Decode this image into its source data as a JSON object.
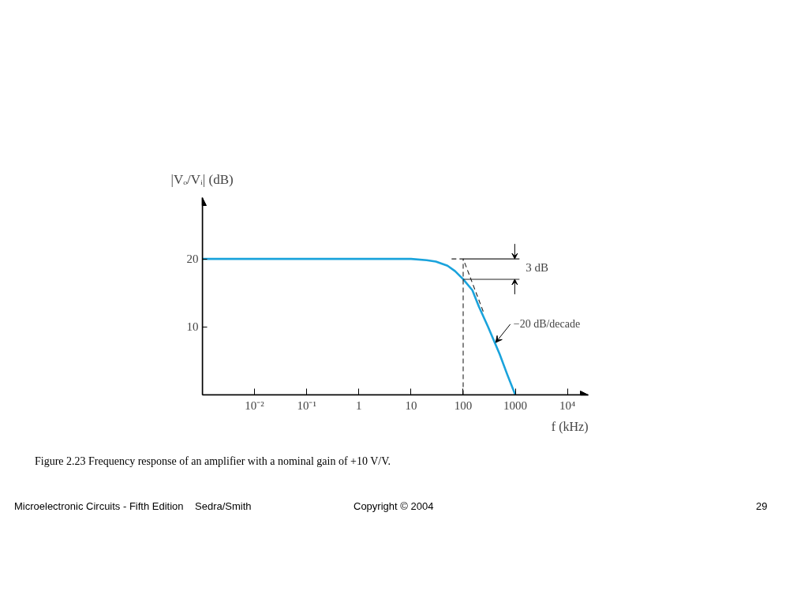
{
  "chart_data": {
    "type": "line",
    "ylabel": "|Vₒ/Vᵢ| (dB)",
    "xlabel": "f (kHz)",
    "log": "x",
    "xlim": [
      0.001,
      25000
    ],
    "ylim": [
      0,
      29
    ],
    "xticks": [
      {
        "value": 0.01,
        "label": "10⁻²"
      },
      {
        "value": 0.1,
        "label": "10⁻¹"
      },
      {
        "value": 1,
        "label": "1"
      },
      {
        "value": 10,
        "label": "10"
      },
      {
        "value": 100,
        "label": "100"
      },
      {
        "value": 1000,
        "label": "1000"
      },
      {
        "value": 10000,
        "label": "10⁴"
      }
    ],
    "yticks": [
      10,
      20
    ],
    "grid": false,
    "marker": "none",
    "series": [
      {
        "color": "#1aa3dc",
        "line_style": "solid",
        "x": [
          0.001,
          0.01,
          0.1,
          1,
          10,
          20,
          30,
          50,
          70,
          100,
          150,
          200,
          300,
          500,
          700,
          1000
        ],
        "values": [
          20,
          20,
          20,
          20,
          20,
          19.8,
          19.6,
          19.0,
          18.2,
          17,
          15.4,
          13.0,
          10.0,
          6.0,
          3.0,
          0
        ]
      },
      {
        "color": "#222222",
        "line_style": "dashed",
        "x": [
          60,
          100,
          250
        ],
        "values": [
          20,
          20,
          12
        ]
      },
      {
        "color": "#222222",
        "line_style": "dashed",
        "x": [
          100,
          100
        ],
        "values": [
          0,
          20
        ]
      },
      {
        "color": "#222222",
        "line_style": "solid",
        "x": [
          100,
          1200
        ],
        "values": [
          20,
          20
        ]
      },
      {
        "color": "#222222",
        "line_style": "solid",
        "x": [
          100,
          1200
        ],
        "values": [
          17,
          17
        ]
      }
    ],
    "annotations": [
      "3 dB",
      {
        "text": "−20 dB/decade",
        "x": 400,
        "y": 7.7
      },
      "Figure 2.23  Frequency response of an amplifier with a nominal gain of +10 V/V.",
      "Microelectronic Circuits - Fifth Edition    Sedra/Smith",
      "Copyright © 2004",
      "29"
    ]
  }
}
